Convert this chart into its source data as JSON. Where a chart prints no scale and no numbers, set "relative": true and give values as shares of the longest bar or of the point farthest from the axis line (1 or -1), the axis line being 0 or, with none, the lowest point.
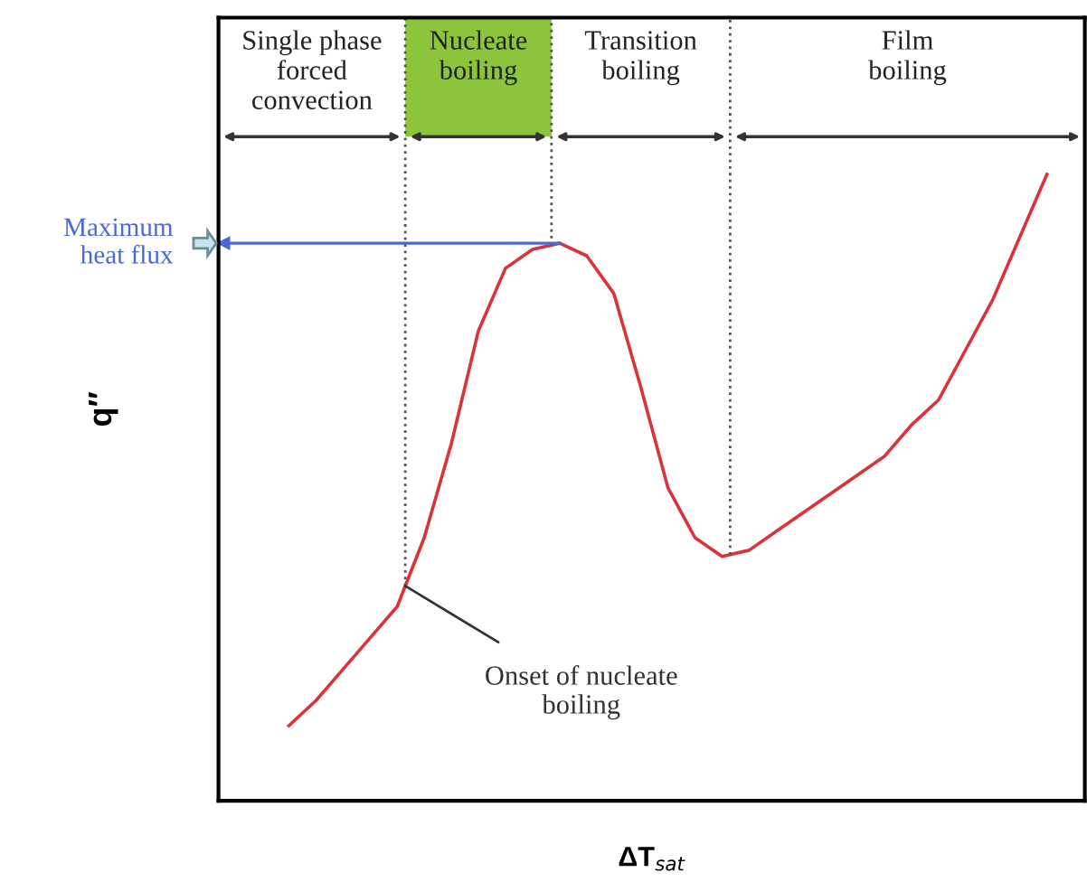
{
  "chart_data": {
    "type": "line",
    "relative": true,
    "xlabel": "ΔT$_{sat}$",
    "ylabel": "q″",
    "categories": [
      null,
      null,
      null,
      null,
      null,
      null,
      null,
      null,
      null,
      null,
      null,
      null,
      null,
      null,
      null,
      null,
      null,
      null,
      null,
      null,
      null,
      null,
      null,
      null,
      null,
      null,
      null,
      null,
      null
    ],
    "series": [
      {
        "color": "#d9343a",
        "values": [
          0.12,
          0.16,
          0.21,
          0.26,
          0.31,
          0.42,
          0.57,
          0.75,
          0.85,
          0.88,
          0.89,
          0.87,
          0.81,
          0.66,
          0.5,
          0.42,
          0.39,
          0.4,
          0.43,
          0.46,
          0.49,
          0.52,
          0.55,
          0.6,
          0.64,
          0.72,
          0.8,
          0.9,
          1
        ]
      }
    ],
    "marker": "none",
    "line_style": "solid",
    "legend": false,
    "ref_lines": [
      {
        "axis": "y",
        "value": 0.89,
        "label": "Maximum\nheat flux",
        "color": "#4a68d8"
      }
    ],
    "annotations": [
      "Single phase\nforced\nconvection",
      "Nucleate\nboiling",
      "Transition\nboiling",
      "Film\nboiling",
      "Onset of nucleate\nboiling"
    ]
  }
}
